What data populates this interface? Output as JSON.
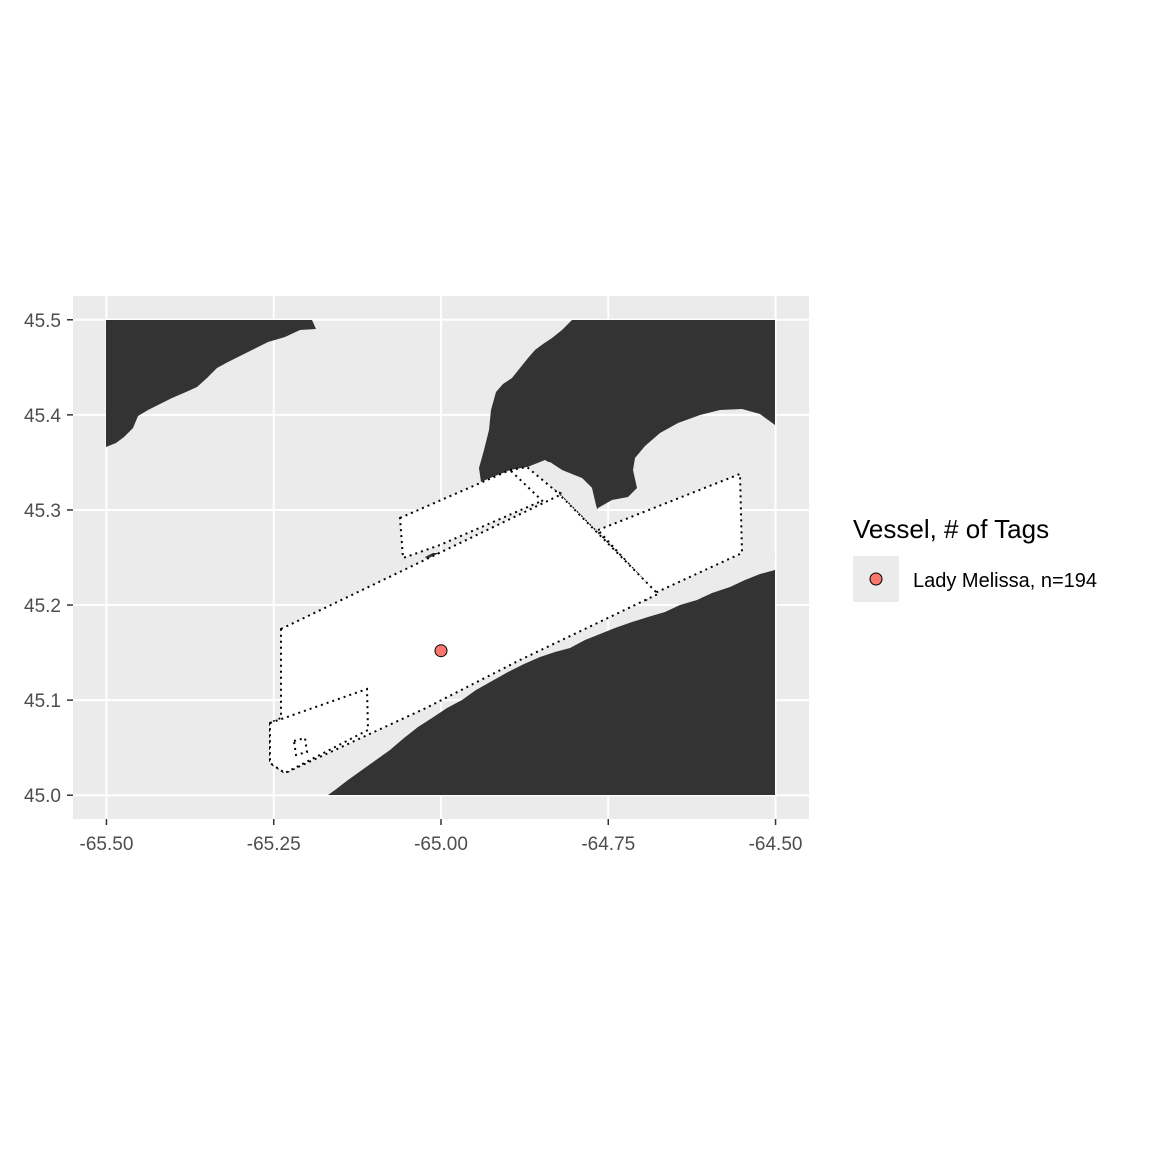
{
  "chart_data": {
    "type": "scatter",
    "x_ticks": [
      "-65.50",
      "-65.25",
      "-65.00",
      "-64.75",
      "-64.50"
    ],
    "y_ticks": [
      "45.0",
      "45.1",
      "45.2",
      "45.3",
      "45.4",
      "45.5"
    ],
    "x_tick_values": [
      -65.5,
      -65.25,
      -65.0,
      -64.75,
      -64.5
    ],
    "y_tick_values": [
      45.0,
      45.1,
      45.2,
      45.3,
      45.4,
      45.5
    ],
    "xlim": [
      -65.55,
      -64.45
    ],
    "ylim": [
      44.975,
      45.525
    ],
    "grid": true,
    "legend_position": "right",
    "legend": {
      "title": "Vessel, # of Tags",
      "entries": [
        {
          "label": "Lady Melissa, n=194",
          "color": "#f8766d"
        }
      ]
    },
    "points": [
      {
        "x": -65.0,
        "y": 45.152,
        "series": "Lady Melissa, n=194"
      }
    ],
    "colors": {
      "panel_background": "#ebebeb",
      "grid": "#ffffff",
      "land": "#333333",
      "water": "#ffffff",
      "shallow_water": "#ebebeb",
      "point_fill": "#f8766d"
    }
  }
}
